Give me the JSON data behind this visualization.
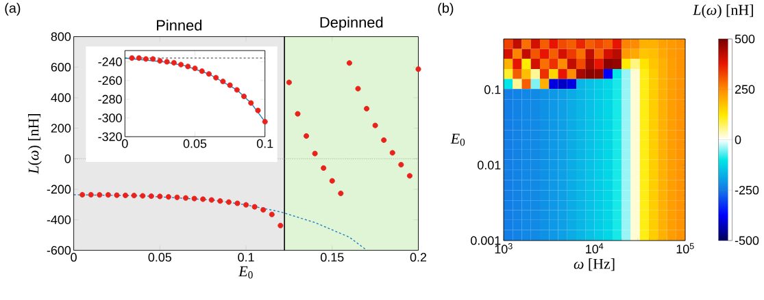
{
  "chart_data": [
    {
      "type": "scatter",
      "annotations": [
        "(a)"
      ],
      "xlabel": "*E*$_{0}$",
      "ylabel": "*L*(*ω*)  [nH]",
      "xlim": [
        0,
        0.2
      ],
      "ylim": [
        -600,
        800
      ],
      "xticks": [
        0,
        0.05,
        0.1,
        0.15,
        0.2
      ],
      "yticks": [
        -600,
        -400,
        -200,
        0,
        200,
        400,
        600,
        800
      ],
      "bands": [
        {
          "axis": "x",
          "from": 0,
          "to": 0.1223,
          "label": "Pinned",
          "color": "#e8e8e8"
        },
        {
          "axis": "x",
          "from": 0.1223,
          "to": 0.2,
          "label": "Depinned",
          "color": "#dff5d5"
        }
      ],
      "ref_lines": [
        {
          "axis": "x",
          "value": 0.1223,
          "color": "#000000",
          "line_style": "solid"
        },
        {
          "axis": "y",
          "value": 0,
          "color": "#808080",
          "line_style": "dotted"
        }
      ],
      "series": [
        {
          "type": "line",
          "marker": "none",
          "line_style": "dashed",
          "color": "#1f7fc0",
          "x": [
            0,
            0.04,
            0.08,
            0.1,
            0.12,
            0.14,
            0.16,
            0.17
          ],
          "values": [
            -236,
            -243,
            -270,
            -302,
            -348,
            -418,
            -514,
            -599
          ]
        },
        {
          "type": "scatter",
          "marker": "circle",
          "color": "#e8231c",
          "x": [
            0.005,
            0.01,
            0.015,
            0.02,
            0.025,
            0.03,
            0.035,
            0.04,
            0.045,
            0.05,
            0.055,
            0.06,
            0.065,
            0.07,
            0.075,
            0.08,
            0.085,
            0.09,
            0.095,
            0.1,
            0.105,
            0.11,
            0.115,
            0.12,
            0.125,
            0.13,
            0.135,
            0.14,
            0.145,
            0.15,
            0.155,
            0.16,
            0.165,
            0.17,
            0.175,
            0.18,
            0.185,
            0.19,
            0.195,
            0.2
          ],
          "values": [
            -236,
            -236,
            -237,
            -237,
            -239,
            -240,
            -241,
            -243,
            -245,
            -247,
            -250,
            -253,
            -257,
            -261,
            -265,
            -270,
            -277,
            -284,
            -292,
            -302,
            -315,
            -335,
            -365,
            -438,
            500,
            294,
            149,
            34,
            -61,
            -145,
            -227,
            627,
            459,
            328,
            218,
            122,
            39,
            -39,
            -112,
            587
          ]
        }
      ]
    },
    {
      "type": "scatter",
      "xlim": [
        0,
        0.1
      ],
      "ylim": [
        -320,
        -228
      ],
      "xticks": [
        0,
        0.05,
        0.1
      ],
      "yticks": [
        -320,
        -300,
        -280,
        -260,
        -240
      ],
      "ref_lines": [
        {
          "axis": "y",
          "value": -236,
          "color": "#000000",
          "line_style": "dashed"
        }
      ],
      "series": [
        {
          "type": "line",
          "marker": "none",
          "line_style": "solid",
          "color": "#1f7fc0",
          "x": [
            0,
            0.0275,
            0.0425,
            0.06,
            0.08,
            0.09,
            0.1
          ],
          "values": [
            -236,
            -240,
            -244,
            -253,
            -270,
            -284,
            -304
          ]
        },
        {
          "type": "scatter",
          "marker": "circle",
          "color": "#e8231c",
          "x": [
            0.005,
            0.01,
            0.015,
            0.02,
            0.025,
            0.03,
            0.035,
            0.04,
            0.045,
            0.05,
            0.055,
            0.06,
            0.065,
            0.07,
            0.075,
            0.08,
            0.085,
            0.09,
            0.095,
            0.1
          ],
          "values": [
            -236,
            -236,
            -237,
            -237,
            -239,
            -240,
            -241,
            -243,
            -245,
            -247,
            -250,
            -253,
            -257,
            -261,
            -265,
            -270,
            -277,
            -284,
            -292,
            -304
          ]
        }
      ]
    },
    {
      "type": "heatmap",
      "annotations": [
        "(b)"
      ],
      "xlabel": "*ω* [Hz]",
      "ylabel": "*E*$_{0}$",
      "clabel": "*L*(*ω*) [nH]",
      "log": "xy",
      "xlim": [
        1000,
        100000
      ],
      "ylim": [
        0.001,
        0.47
      ],
      "xticks": [
        {
          "value": 1000,
          "label": "10$^{3}$"
        },
        {
          "value": 10000,
          "label": "10$^{4}$"
        },
        {
          "value": 100000,
          "label": "10$^{5}$"
        }
      ],
      "yticks": [
        0.001,
        0.01,
        0.1
      ],
      "clim": [
        -500,
        500
      ],
      "cticks": [
        -500,
        -250,
        0,
        250,
        500
      ],
      "x": [
        1122,
        1413,
        1778,
        2239,
        2818,
        3548,
        4467,
        5623,
        7079,
        8913,
        11220,
        14125,
        17783,
        22387,
        28184,
        35481,
        44668,
        56234,
        70795,
        89125
      ],
      "y": [
        0.4,
        0.3,
        0.22,
        0.16,
        0.12,
        0.087,
        0.064,
        0.047,
        0.034,
        0.025,
        0.019,
        0.014,
        0.01,
        0.0074,
        0.0054,
        0.004,
        0.0029,
        0.0022,
        0.0016,
        0.0012
      ],
      "cells": [
        [
          330,
          420,
          280,
          400,
          300,
          380,
          320,
          300,
          360,
          300,
          330,
          300,
          380,
          260,
          250,
          200,
          200,
          220,
          230,
          240
        ],
        [
          400,
          260,
          420,
          310,
          380,
          300,
          400,
          340,
          280,
          420,
          300,
          400,
          430,
          230,
          210,
          170,
          180,
          210,
          230,
          240
        ],
        [
          200,
          380,
          120,
          400,
          280,
          350,
          250,
          420,
          320,
          450,
          380,
          480,
          470,
          120,
          60,
          130,
          170,
          200,
          225,
          240
        ],
        [
          100,
          300,
          180,
          50,
          350,
          150,
          380,
          250,
          450,
          480,
          470,
          -380,
          -100,
          -40,
          20,
          110,
          160,
          200,
          225,
          240
        ],
        [
          -100,
          50,
          300,
          -50,
          200,
          -400,
          -420,
          -400,
          -165,
          -150,
          -135,
          -120,
          -90,
          -40,
          20,
          110,
          160,
          200,
          225,
          240
        ],
        [
          -240,
          -235,
          -230,
          -225,
          -215,
          -205,
          -195,
          -180,
          -165,
          -150,
          -135,
          -120,
          -90,
          -40,
          20,
          110,
          160,
          200,
          225,
          240
        ],
        [
          -240,
          -235,
          -230,
          -225,
          -215,
          -205,
          -195,
          -180,
          -165,
          -150,
          -135,
          -120,
          -90,
          -40,
          20,
          110,
          160,
          200,
          225,
          240
        ],
        [
          -240,
          -235,
          -230,
          -225,
          -215,
          -205,
          -195,
          -180,
          -165,
          -150,
          -135,
          -120,
          -90,
          -40,
          20,
          110,
          160,
          200,
          225,
          240
        ],
        [
          -240,
          -235,
          -230,
          -225,
          -215,
          -205,
          -195,
          -180,
          -165,
          -150,
          -135,
          -120,
          -90,
          -40,
          20,
          110,
          160,
          200,
          225,
          240
        ],
        [
          -240,
          -235,
          -230,
          -225,
          -215,
          -205,
          -195,
          -180,
          -165,
          -150,
          -135,
          -120,
          -90,
          -40,
          20,
          110,
          160,
          200,
          225,
          240
        ],
        [
          -240,
          -235,
          -230,
          -225,
          -215,
          -205,
          -195,
          -180,
          -165,
          -150,
          -135,
          -120,
          -90,
          -40,
          20,
          110,
          160,
          200,
          225,
          240
        ],
        [
          -240,
          -235,
          -230,
          -225,
          -215,
          -205,
          -195,
          -180,
          -165,
          -150,
          -135,
          -120,
          -90,
          -40,
          20,
          110,
          160,
          200,
          225,
          240
        ],
        [
          -240,
          -235,
          -230,
          -225,
          -215,
          -205,
          -195,
          -180,
          -165,
          -150,
          -135,
          -120,
          -90,
          -40,
          20,
          110,
          160,
          200,
          225,
          240
        ],
        [
          -240,
          -235,
          -230,
          -225,
          -215,
          -205,
          -195,
          -180,
          -165,
          -150,
          -135,
          -120,
          -90,
          -40,
          20,
          110,
          160,
          200,
          225,
          240
        ],
        [
          -240,
          -235,
          -230,
          -225,
          -215,
          -205,
          -195,
          -180,
          -165,
          -150,
          -135,
          -120,
          -90,
          -40,
          20,
          110,
          160,
          200,
          225,
          240
        ],
        [
          -240,
          -235,
          -230,
          -225,
          -215,
          -205,
          -195,
          -180,
          -165,
          -150,
          -135,
          -120,
          -90,
          -40,
          20,
          110,
          160,
          200,
          225,
          240
        ],
        [
          -240,
          -235,
          -230,
          -225,
          -215,
          -205,
          -195,
          -180,
          -165,
          -150,
          -135,
          -120,
          -90,
          -40,
          20,
          110,
          160,
          200,
          225,
          240
        ],
        [
          -240,
          -235,
          -230,
          -225,
          -215,
          -205,
          -195,
          -180,
          -165,
          -150,
          -135,
          -120,
          -90,
          -40,
          20,
          110,
          160,
          200,
          225,
          240
        ],
        [
          -240,
          -235,
          -230,
          -225,
          -215,
          -205,
          -195,
          -180,
          -165,
          -150,
          -135,
          -120,
          -90,
          -40,
          20,
          110,
          160,
          200,
          225,
          240
        ],
        [
          -240,
          -235,
          -230,
          -225,
          -215,
          -205,
          -195,
          -180,
          -165,
          -150,
          -135,
          -120,
          -90,
          -40,
          20,
          110,
          160,
          200,
          225,
          240
        ]
      ]
    }
  ]
}
